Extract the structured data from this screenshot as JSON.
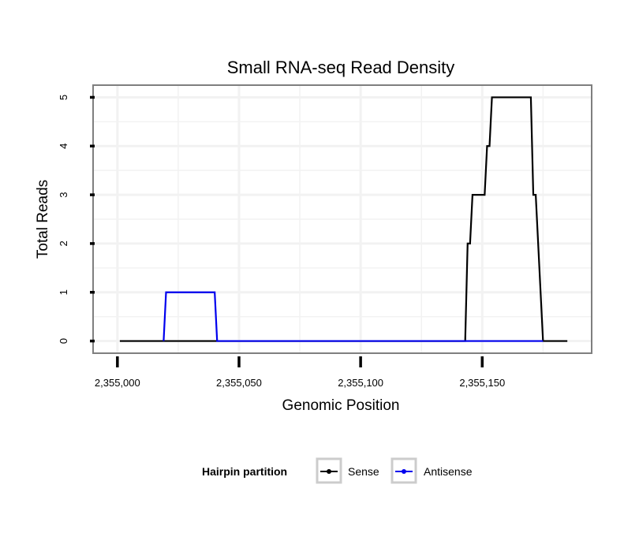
{
  "chart_data": {
    "type": "line",
    "title": "Small RNA-seq Read Density",
    "xlabel": "Genomic Position",
    "ylabel": "Total Reads",
    "xlim": [
      2354990,
      2355195
    ],
    "ylim": [
      -0.25,
      5.25
    ],
    "x_ticks": [
      2355000,
      2355050,
      2355100,
      2355150
    ],
    "x_tick_labels": [
      "2,355,000",
      "2,355,050",
      "2,355,100",
      "2,355,150"
    ],
    "y_ticks": [
      0,
      1,
      2,
      3,
      4,
      5
    ],
    "y_tick_labels": [
      "0",
      "1",
      "2",
      "3",
      "4",
      "5"
    ],
    "grid": true,
    "legend": {
      "title": "Hairpin partition",
      "position": "bottom"
    },
    "series": [
      {
        "name": "Sense",
        "color": "#000000",
        "x": [
          2355001,
          2355143,
          2355144,
          2355145,
          2355146,
          2355147,
          2355151,
          2355152,
          2355153,
          2355154,
          2355170,
          2355171,
          2355172,
          2355175,
          2355185
        ],
        "y": [
          0,
          0,
          2,
          2,
          3,
          3,
          3,
          4,
          4,
          5,
          5,
          3,
          3,
          0,
          0
        ]
      },
      {
        "name": "Antisense",
        "color": "#0000ee",
        "x": [
          2355019,
          2355020,
          2355040,
          2355041,
          2355143,
          2355175
        ],
        "y": [
          0,
          1,
          1,
          0,
          0,
          0
        ]
      }
    ]
  }
}
